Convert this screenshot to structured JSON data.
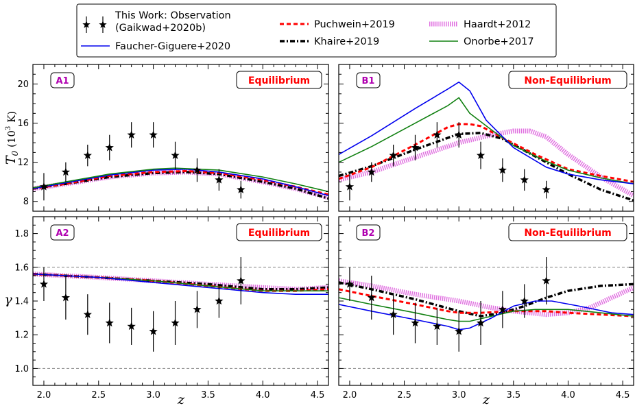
{
  "legend": {
    "entries": [
      {
        "key": "obs",
        "label": "This Work: Observation",
        "label2": "(Gaikwad+2020b)"
      },
      {
        "key": "fg",
        "label": "Faucher-Giguere+2020"
      },
      {
        "key": "pu",
        "label": "Puchwein+2019"
      },
      {
        "key": "kh",
        "label": "Khaire+2019"
      },
      {
        "key": "ha",
        "label": "Haardt+2012"
      },
      {
        "key": "on",
        "label": "Onorbe+2017"
      }
    ]
  },
  "styles": {
    "obs": {
      "color": "#000000"
    },
    "fg": {
      "color": "#0000ee",
      "width": 1.6,
      "dash": ""
    },
    "pu": {
      "color": "#ff0000",
      "width": 3,
      "dash": "6 4"
    },
    "kh": {
      "color": "#000000",
      "width": 3.5,
      "dash": "7 3 2 3"
    },
    "ha": {
      "color": "#e070e0",
      "width": 7,
      "dash": "1.5 1.5"
    },
    "on": {
      "color": "#108010",
      "width": 1.6,
      "dash": ""
    }
  },
  "axes": {
    "xlabel": "z",
    "ylabel_top_pre": "T",
    "ylabel_top_sub": "0",
    "ylabel_top_post": " (10",
    "ylabel_top_sup": "3",
    "ylabel_top_end": " K)",
    "ylabel_bottom": "γ"
  },
  "chart_data": [
    {
      "type": "line",
      "id": "A1",
      "tag": "A1",
      "mode": "Equilibrium",
      "xlabel": "z",
      "ylabel": "T0 (10^3 K)",
      "xlim": [
        1.9,
        4.6
      ],
      "ylim": [
        7,
        22
      ],
      "xticks": [
        2.0,
        2.5,
        3.0,
        3.5,
        4.0,
        4.5
      ],
      "xtick_labels": [
        "2.0",
        "2.5",
        "3.0",
        "3.5",
        "4.0",
        "4.5"
      ],
      "yticks": [
        8,
        12,
        16,
        20
      ],
      "ytick_labels": [
        "8",
        "12",
        "16",
        "20"
      ],
      "ref_lines": [],
      "observations": {
        "z": [
          2.0,
          2.2,
          2.4,
          2.6,
          2.8,
          3.0,
          3.2,
          3.4,
          3.6,
          3.8
        ],
        "values": [
          9.5,
          11.0,
          12.7,
          13.5,
          14.8,
          14.8,
          12.7,
          11.2,
          10.2,
          9.2
        ],
        "errors": [
          1.4,
          1.0,
          1.1,
          1.3,
          1.3,
          1.3,
          1.4,
          1.2,
          1.1,
          0.9
        ]
      },
      "series": [
        {
          "key": "ha",
          "name": "Haardt+2012",
          "x": [
            1.9,
            2.2,
            2.6,
            3.0,
            3.3,
            3.6,
            4.0,
            4.3,
            4.6
          ],
          "y": [
            9.3,
            9.8,
            10.5,
            10.9,
            11.0,
            10.8,
            10.0,
            9.3,
            8.4
          ]
        },
        {
          "key": "kh",
          "name": "Khaire+2019",
          "x": [
            1.9,
            2.2,
            2.6,
            3.0,
            3.3,
            3.6,
            4.0,
            4.3,
            4.6
          ],
          "y": [
            9.3,
            9.8,
            10.5,
            10.9,
            11.0,
            10.8,
            10.0,
            9.3,
            8.3
          ]
        },
        {
          "key": "pu",
          "name": "Puchwein+2019",
          "x": [
            1.9,
            2.2,
            2.6,
            3.0,
            3.3,
            3.6,
            4.0,
            4.3,
            4.6
          ],
          "y": [
            9.3,
            9.8,
            10.6,
            11.0,
            11.1,
            10.9,
            10.2,
            9.5,
            8.7
          ]
        },
        {
          "key": "fg",
          "name": "Faucher-Giguere+2020",
          "x": [
            1.9,
            2.2,
            2.6,
            3.0,
            3.3,
            3.6,
            4.0,
            4.3,
            4.6
          ],
          "y": [
            9.3,
            9.9,
            10.7,
            11.2,
            11.3,
            11.0,
            10.3,
            9.5,
            8.6
          ]
        },
        {
          "key": "on",
          "name": "Onorbe+2017",
          "x": [
            1.9,
            2.2,
            2.6,
            3.0,
            3.2,
            3.6,
            4.0,
            4.3,
            4.6
          ],
          "y": [
            9.4,
            10.0,
            10.8,
            11.3,
            11.4,
            11.2,
            10.5,
            9.8,
            9.0
          ]
        }
      ]
    },
    {
      "type": "line",
      "id": "B1",
      "tag": "B1",
      "mode": "Non-Equilibrium",
      "xlabel": "z",
      "ylabel": "T0 (10^3 K)",
      "xlim": [
        1.9,
        4.6
      ],
      "ylim": [
        7,
        22
      ],
      "xticks": [
        2.0,
        2.5,
        3.0,
        3.5,
        4.0,
        4.5
      ],
      "xtick_labels": [
        "2.0",
        "2.5",
        "3.0",
        "3.5",
        "4.0",
        "4.5"
      ],
      "yticks": [
        8,
        12,
        16,
        20
      ],
      "ytick_labels": [
        "8",
        "12",
        "16",
        "20"
      ],
      "ref_lines": [],
      "observations": {
        "z": [
          2.0,
          2.2,
          2.4,
          2.6,
          2.8,
          3.0,
          3.2,
          3.4,
          3.6,
          3.8
        ],
        "values": [
          9.5,
          11.0,
          12.7,
          13.5,
          14.8,
          14.8,
          12.7,
          11.2,
          10.2,
          9.2
        ],
        "errors": [
          1.4,
          1.0,
          1.1,
          1.3,
          1.3,
          1.3,
          1.4,
          1.2,
          1.1,
          0.9
        ]
      },
      "series": [
        {
          "key": "ha",
          "name": "Haardt+2012",
          "x": [
            1.9,
            2.2,
            2.6,
            3.0,
            3.3,
            3.5,
            3.65,
            3.8,
            4.0,
            4.3,
            4.6
          ],
          "y": [
            10.2,
            11.0,
            12.5,
            14.0,
            14.8,
            15.2,
            15.2,
            14.6,
            12.8,
            10.5,
            8.6
          ]
        },
        {
          "key": "kh",
          "name": "Khaire+2019",
          "x": [
            1.9,
            2.2,
            2.6,
            3.0,
            3.2,
            3.4,
            3.7,
            4.0,
            4.3,
            4.6
          ],
          "y": [
            10.6,
            11.6,
            13.3,
            14.9,
            15.0,
            14.4,
            12.6,
            10.8,
            9.2,
            8.1
          ]
        },
        {
          "key": "pu",
          "name": "Puchwein+2019",
          "x": [
            1.9,
            2.2,
            2.6,
            2.9,
            3.0,
            3.1,
            3.2,
            3.4,
            3.7,
            4.0,
            4.3,
            4.6
          ],
          "y": [
            10.3,
            11.5,
            13.8,
            15.6,
            15.9,
            15.9,
            15.7,
            14.5,
            12.8,
            11.3,
            10.6,
            10.0
          ]
        },
        {
          "key": "on",
          "name": "Onorbe+2017",
          "x": [
            1.9,
            2.2,
            2.6,
            2.9,
            3.0,
            3.1,
            3.3,
            3.5,
            3.8,
            4.0,
            4.3,
            4.6
          ],
          "y": [
            12.0,
            13.6,
            16.0,
            17.8,
            18.6,
            17.0,
            15.3,
            13.7,
            12.1,
            11.2,
            10.4,
            9.8
          ]
        },
        {
          "key": "fg",
          "name": "Faucher-Giguere+2020",
          "x": [
            1.9,
            2.2,
            2.6,
            2.9,
            3.0,
            3.1,
            3.25,
            3.5,
            3.8,
            4.0,
            4.3,
            4.6
          ],
          "y": [
            12.8,
            14.7,
            17.5,
            19.5,
            20.2,
            19.3,
            16.3,
            13.5,
            11.5,
            10.8,
            10.2,
            9.8
          ]
        }
      ]
    },
    {
      "type": "line",
      "id": "A2",
      "tag": "A2",
      "mode": "Equilibrium",
      "xlabel": "z",
      "ylabel": "γ",
      "xlim": [
        1.9,
        4.6
      ],
      "ylim": [
        0.9,
        1.9
      ],
      "xticks": [
        2.0,
        2.5,
        3.0,
        3.5,
        4.0,
        4.5
      ],
      "xtick_labels": [
        "2.0",
        "2.5",
        "3.0",
        "3.5",
        "4.0",
        "4.5"
      ],
      "yticks": [
        1.0,
        1.2,
        1.4,
        1.6,
        1.8
      ],
      "ytick_labels": [
        "1.0",
        "1.2",
        "1.4",
        "1.6",
        "1.8"
      ],
      "ref_lines": [
        1.0,
        1.6
      ],
      "observations": {
        "z": [
          2.0,
          2.2,
          2.4,
          2.6,
          2.8,
          3.0,
          3.2,
          3.4,
          3.6,
          3.8
        ],
        "values": [
          1.5,
          1.42,
          1.32,
          1.27,
          1.25,
          1.22,
          1.27,
          1.35,
          1.4,
          1.52
        ],
        "errors": [
          0.1,
          0.13,
          0.12,
          0.12,
          0.11,
          0.12,
          0.13,
          0.11,
          0.1,
          0.14
        ]
      },
      "series": [
        {
          "key": "ha",
          "name": "Haardt+2012",
          "x": [
            1.9,
            2.5,
            3.0,
            3.5,
            4.0,
            4.3,
            4.6
          ],
          "y": [
            1.56,
            1.54,
            1.52,
            1.5,
            1.48,
            1.47,
            1.48
          ]
        },
        {
          "key": "kh",
          "name": "Khaire+2019",
          "x": [
            1.9,
            2.5,
            3.0,
            3.5,
            4.0,
            4.3,
            4.6
          ],
          "y": [
            1.56,
            1.54,
            1.52,
            1.5,
            1.47,
            1.47,
            1.48
          ]
        },
        {
          "key": "pu",
          "name": "Puchwein+2019",
          "x": [
            1.9,
            2.5,
            3.0,
            3.5,
            4.0,
            4.3,
            4.6
          ],
          "y": [
            1.56,
            1.54,
            1.52,
            1.49,
            1.46,
            1.46,
            1.47
          ]
        },
        {
          "key": "on",
          "name": "Onorbe+2017",
          "x": [
            1.9,
            2.5,
            3.0,
            3.5,
            4.0,
            4.3,
            4.6
          ],
          "y": [
            1.56,
            1.54,
            1.52,
            1.49,
            1.46,
            1.46,
            1.46
          ]
        },
        {
          "key": "fg",
          "name": "Faucher-Giguere+2020",
          "x": [
            1.9,
            2.5,
            3.0,
            3.5,
            4.0,
            4.3,
            4.6
          ],
          "y": [
            1.56,
            1.54,
            1.51,
            1.48,
            1.45,
            1.44,
            1.44
          ]
        }
      ]
    },
    {
      "type": "line",
      "id": "B2",
      "tag": "B2",
      "mode": "Non-Equilibrium",
      "xlabel": "z",
      "ylabel": "γ",
      "xlim": [
        1.9,
        4.6
      ],
      "ylim": [
        0.9,
        1.9
      ],
      "xticks": [
        2.0,
        2.5,
        3.0,
        3.5,
        4.0,
        4.5
      ],
      "xtick_labels": [
        "2.0",
        "2.5",
        "3.0",
        "3.5",
        "4.0",
        "4.5"
      ],
      "yticks": [
        1.0,
        1.2,
        1.4,
        1.6,
        1.8
      ],
      "ytick_labels": [
        "1.0",
        "1.2",
        "1.4",
        "1.6",
        "1.8"
      ],
      "ref_lines": [
        1.0,
        1.6
      ],
      "observations": {
        "z": [
          2.0,
          2.2,
          2.4,
          2.6,
          2.8,
          3.0,
          3.2,
          3.4,
          3.6,
          3.8
        ],
        "values": [
          1.5,
          1.42,
          1.32,
          1.27,
          1.25,
          1.22,
          1.27,
          1.35,
          1.4,
          1.52
        ],
        "errors": [
          0.1,
          0.13,
          0.12,
          0.12,
          0.11,
          0.12,
          0.13,
          0.11,
          0.1,
          0.14
        ]
      },
      "series": [
        {
          "key": "ha",
          "name": "Haardt+2012",
          "x": [
            1.9,
            2.2,
            2.6,
            3.0,
            3.3,
            3.5,
            3.8,
            4.0,
            4.2,
            4.4,
            4.6
          ],
          "y": [
            1.52,
            1.49,
            1.44,
            1.4,
            1.36,
            1.34,
            1.32,
            1.33,
            1.36,
            1.42,
            1.48
          ]
        },
        {
          "key": "kh",
          "name": "Khaire+2019",
          "x": [
            1.9,
            2.2,
            2.6,
            3.0,
            3.2,
            3.4,
            3.6,
            3.8,
            4.0,
            4.3,
            4.6
          ],
          "y": [
            1.51,
            1.47,
            1.41,
            1.34,
            1.31,
            1.33,
            1.37,
            1.42,
            1.46,
            1.49,
            1.5
          ]
        },
        {
          "key": "pu",
          "name": "Puchwein+2019",
          "x": [
            1.9,
            2.2,
            2.6,
            2.9,
            3.0,
            3.2,
            3.5,
            3.8,
            4.0,
            4.3,
            4.6
          ],
          "y": [
            1.47,
            1.43,
            1.38,
            1.34,
            1.33,
            1.33,
            1.34,
            1.34,
            1.33,
            1.32,
            1.31
          ]
        },
        {
          "key": "on",
          "name": "Onorbe+2017",
          "x": [
            1.9,
            2.2,
            2.6,
            2.9,
            3.0,
            3.1,
            3.3,
            3.5,
            3.7,
            4.0,
            4.3,
            4.6
          ],
          "y": [
            1.42,
            1.38,
            1.33,
            1.29,
            1.28,
            1.28,
            1.31,
            1.34,
            1.35,
            1.35,
            1.33,
            1.31
          ]
        },
        {
          "key": "fg",
          "name": "Faucher-Giguere+2020",
          "x": [
            1.9,
            2.2,
            2.6,
            2.9,
            3.0,
            3.1,
            3.3,
            3.5,
            3.7,
            3.85,
            4.1,
            4.4,
            4.6
          ],
          "y": [
            1.38,
            1.34,
            1.29,
            1.25,
            1.23,
            1.24,
            1.3,
            1.37,
            1.4,
            1.4,
            1.37,
            1.33,
            1.32
          ]
        }
      ]
    }
  ]
}
